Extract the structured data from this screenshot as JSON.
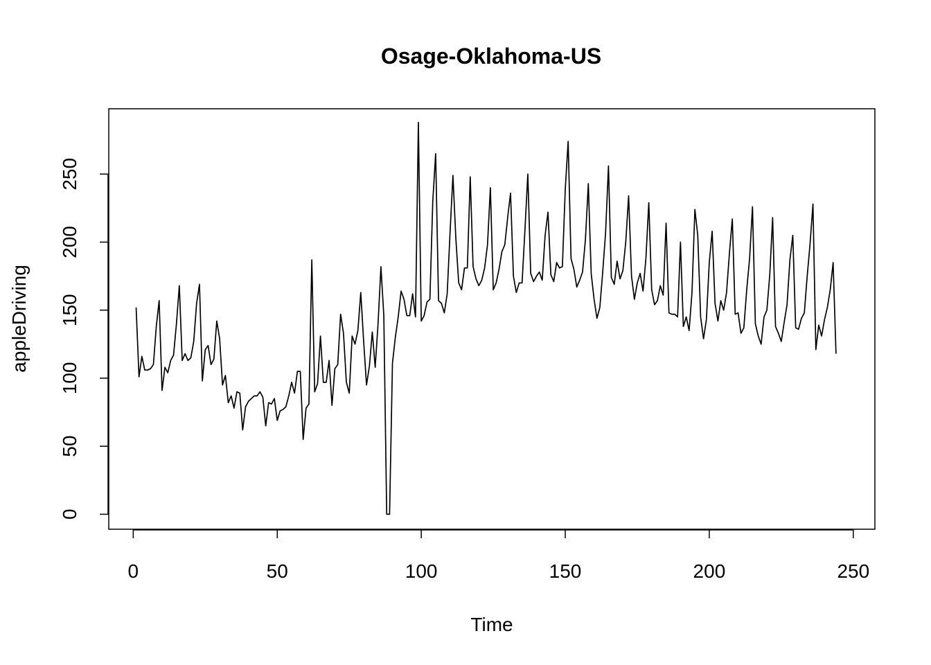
{
  "chart_data": {
    "type": "line",
    "title": "Osage-Oklahoma-US",
    "xlabel": "Time",
    "ylabel": "appleDriving",
    "xlim": [
      -8.5,
      257.5
    ],
    "ylim": [
      -11,
      298
    ],
    "x_ticks": [
      0,
      50,
      100,
      150,
      200,
      250
    ],
    "y_ticks": [
      0,
      50,
      100,
      150,
      200,
      250
    ],
    "grid": false,
    "legend": "none",
    "line_color": "#000000",
    "x_start": 1,
    "x_step": 1,
    "values": [
      152,
      101,
      116,
      106,
      106,
      107,
      110,
      138,
      157,
      91,
      108,
      104,
      113,
      117,
      140,
      168,
      113,
      118,
      113,
      115,
      127,
      155,
      169,
      98,
      121,
      124,
      110,
      114,
      142,
      129,
      95,
      102,
      82,
      87,
      78,
      90,
      89,
      62,
      79,
      83,
      85,
      87,
      87,
      90,
      86,
      65,
      82,
      81,
      85,
      69,
      76,
      77,
      79,
      87,
      97,
      89,
      105,
      105,
      55,
      78,
      81,
      187,
      90,
      96,
      131,
      97,
      97,
      113,
      80,
      107,
      110,
      147,
      133,
      97,
      89,
      131,
      125,
      135,
      163,
      127,
      95,
      109,
      134,
      108,
      140,
      182,
      146,
      0,
      0,
      111,
      130,
      145,
      164,
      158,
      146,
      146,
      162,
      145,
      288,
      142,
      146,
      156,
      158,
      230,
      265,
      157,
      155,
      148,
      162,
      207,
      249,
      203,
      170,
      165,
      181,
      181,
      248,
      182,
      173,
      168,
      172,
      181,
      198,
      240,
      165,
      170,
      180,
      193,
      198,
      218,
      236,
      175,
      163,
      170,
      170,
      209,
      250,
      177,
      171,
      175,
      178,
      172,
      205,
      222,
      176,
      171,
      185,
      181,
      182,
      239,
      274,
      188,
      180,
      167,
      172,
      178,
      202,
      243,
      177,
      158,
      144,
      152,
      178,
      207,
      256,
      174,
      169,
      186,
      173,
      179,
      200,
      234,
      175,
      158,
      170,
      177,
      164,
      188,
      229,
      165,
      154,
      157,
      168,
      161,
      214,
      148,
      147,
      147,
      145,
      200,
      138,
      145,
      135,
      163,
      224,
      205,
      145,
      129,
      143,
      185,
      208,
      155,
      142,
      157,
      150,
      163,
      192,
      217,
      147,
      148,
      133,
      137,
      165,
      188,
      226,
      140,
      131,
      125,
      145,
      150,
      176,
      218,
      138,
      133,
      127,
      141,
      154,
      187,
      205,
      137,
      136,
      144,
      148,
      175,
      199,
      228,
      121,
      139,
      131,
      143,
      152,
      165,
      185,
      118
    ]
  }
}
